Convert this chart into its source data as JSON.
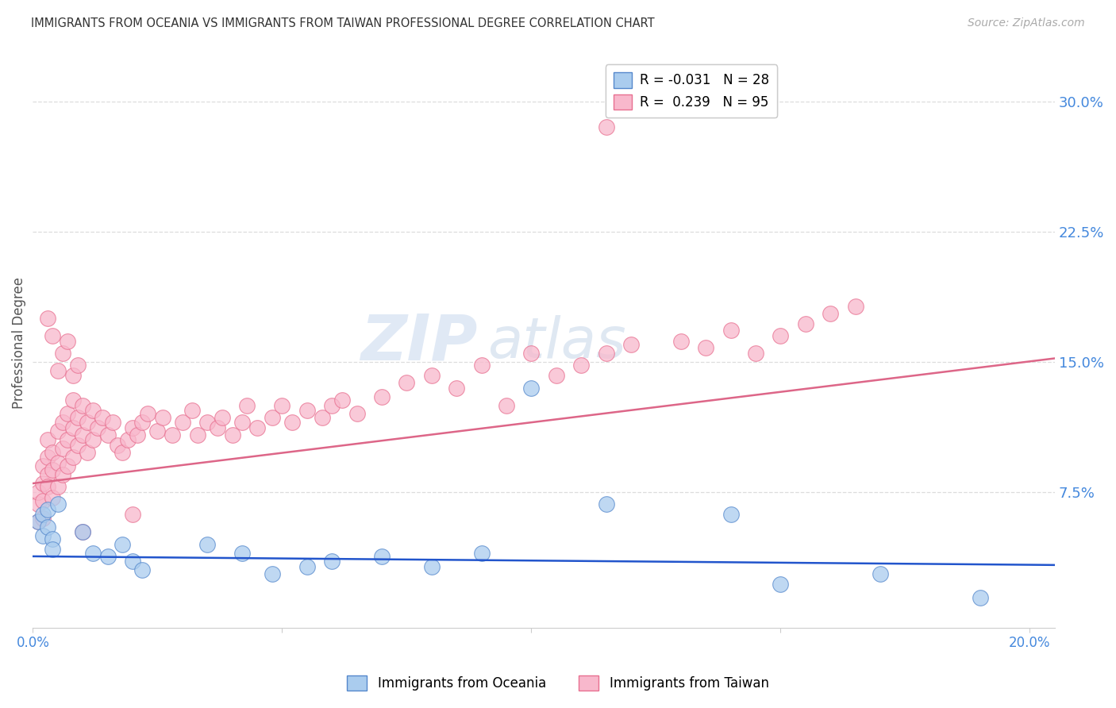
{
  "title": "IMMIGRANTS FROM OCEANIA VS IMMIGRANTS FROM TAIWAN PROFESSIONAL DEGREE CORRELATION CHART",
  "source": "Source: ZipAtlas.com",
  "ylabel": "Professional Degree",
  "watermark_zip": "ZIP",
  "watermark_atlas": "atlas",
  "xlim": [
    0.0,
    0.205
  ],
  "ylim": [
    -0.003,
    0.325
  ],
  "xticks": [
    0.0,
    0.05,
    0.1,
    0.15,
    0.2
  ],
  "xtick_labels": [
    "0.0%",
    "",
    "",
    "",
    "20.0%"
  ],
  "yticks_right": [
    0.075,
    0.15,
    0.225,
    0.3
  ],
  "ytick_labels_right": [
    "7.5%",
    "15.0%",
    "22.5%",
    "30.0%"
  ],
  "series1_facecolor": "#aaccee",
  "series1_edgecolor": "#5588cc",
  "series2_facecolor": "#f8b8cc",
  "series2_edgecolor": "#e87090",
  "line1_color": "#2255cc",
  "line2_color": "#dd6688",
  "legend_r1": "-0.031",
  "legend_n1": "28",
  "legend_r2": "0.239",
  "legend_n2": "95",
  "label1": "Immigrants from Oceania",
  "label2": "Immigrants from Taiwan",
  "title_color": "#333333",
  "source_color": "#aaaaaa",
  "ylabel_color": "#555555",
  "right_tick_color": "#4488dd",
  "bottom_tick_color": "#4488dd",
  "grid_color": "#dddddd",
  "series1_x": [
    0.001,
    0.002,
    0.002,
    0.003,
    0.003,
    0.004,
    0.004,
    0.005,
    0.01,
    0.012,
    0.015,
    0.018,
    0.02,
    0.022,
    0.035,
    0.042,
    0.048,
    0.055,
    0.06,
    0.07,
    0.08,
    0.09,
    0.1,
    0.115,
    0.14,
    0.15,
    0.17,
    0.19
  ],
  "series1_y": [
    0.058,
    0.062,
    0.05,
    0.065,
    0.055,
    0.048,
    0.042,
    0.068,
    0.052,
    0.04,
    0.038,
    0.045,
    0.035,
    0.03,
    0.045,
    0.04,
    0.028,
    0.032,
    0.035,
    0.038,
    0.032,
    0.04,
    0.135,
    0.068,
    0.062,
    0.022,
    0.028,
    0.014
  ],
  "series2_x": [
    0.001,
    0.001,
    0.001,
    0.002,
    0.002,
    0.002,
    0.002,
    0.003,
    0.003,
    0.003,
    0.003,
    0.004,
    0.004,
    0.004,
    0.005,
    0.005,
    0.005,
    0.006,
    0.006,
    0.006,
    0.007,
    0.007,
    0.007,
    0.008,
    0.008,
    0.008,
    0.009,
    0.009,
    0.01,
    0.01,
    0.011,
    0.011,
    0.012,
    0.012,
    0.013,
    0.014,
    0.015,
    0.016,
    0.017,
    0.018,
    0.019,
    0.02,
    0.021,
    0.022,
    0.023,
    0.025,
    0.026,
    0.028,
    0.03,
    0.032,
    0.033,
    0.035,
    0.037,
    0.038,
    0.04,
    0.042,
    0.043,
    0.045,
    0.048,
    0.05,
    0.052,
    0.055,
    0.058,
    0.06,
    0.062,
    0.065,
    0.07,
    0.075,
    0.08,
    0.085,
    0.09,
    0.095,
    0.1,
    0.105,
    0.11,
    0.115,
    0.12,
    0.13,
    0.135,
    0.14,
    0.145,
    0.15,
    0.155,
    0.16,
    0.165,
    0.003,
    0.004,
    0.005,
    0.006,
    0.007,
    0.008,
    0.009,
    0.01,
    0.115,
    0.02
  ],
  "series2_y": [
    0.068,
    0.075,
    0.058,
    0.08,
    0.07,
    0.09,
    0.06,
    0.085,
    0.095,
    0.078,
    0.105,
    0.088,
    0.072,
    0.098,
    0.11,
    0.092,
    0.078,
    0.115,
    0.1,
    0.085,
    0.12,
    0.105,
    0.09,
    0.128,
    0.112,
    0.095,
    0.118,
    0.102,
    0.125,
    0.108,
    0.115,
    0.098,
    0.122,
    0.105,
    0.112,
    0.118,
    0.108,
    0.115,
    0.102,
    0.098,
    0.105,
    0.112,
    0.108,
    0.115,
    0.12,
    0.11,
    0.118,
    0.108,
    0.115,
    0.122,
    0.108,
    0.115,
    0.112,
    0.118,
    0.108,
    0.115,
    0.125,
    0.112,
    0.118,
    0.125,
    0.115,
    0.122,
    0.118,
    0.125,
    0.128,
    0.12,
    0.13,
    0.138,
    0.142,
    0.135,
    0.148,
    0.125,
    0.155,
    0.142,
    0.148,
    0.155,
    0.16,
    0.162,
    0.158,
    0.168,
    0.155,
    0.165,
    0.172,
    0.178,
    0.182,
    0.175,
    0.165,
    0.145,
    0.155,
    0.162,
    0.142,
    0.148,
    0.052,
    0.285,
    0.062
  ],
  "line1_x": [
    0.0,
    0.205
  ],
  "line1_y": [
    0.038,
    0.033
  ],
  "line2_x": [
    0.0,
    0.205
  ],
  "line2_y": [
    0.08,
    0.152
  ]
}
